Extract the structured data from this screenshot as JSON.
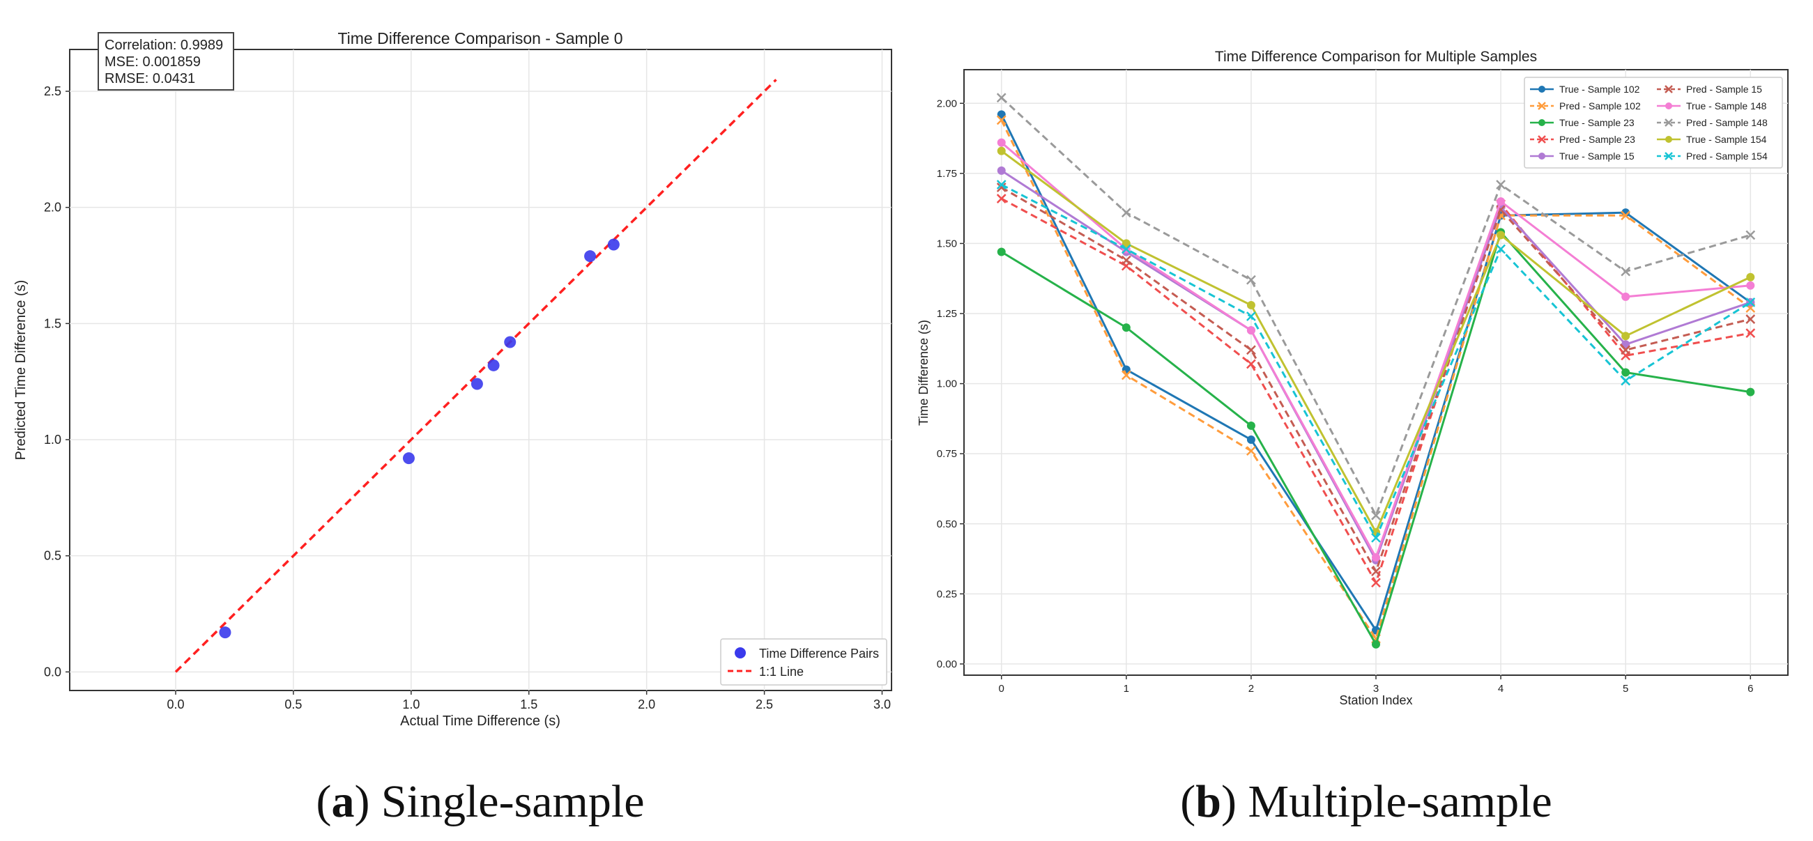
{
  "colors": {
    "scatter": "#3a3aec",
    "identity": "#ff2020",
    "blue": "#1f77b4",
    "orange": "#ff9c3c",
    "green": "#26b24a",
    "red": "#f04e4e",
    "purple": "#b07ad4",
    "brown": "#c45c52",
    "pink": "#f47ed4",
    "gray": "#9a9a9a",
    "olive": "#c0c230",
    "cyan": "#17c4d4"
  },
  "captions": {
    "a": {
      "label": "a",
      "text": "Single-sample"
    },
    "b": {
      "label": "b",
      "text": "Multiple-sample"
    }
  },
  "chart_data": [
    {
      "type": "scatter",
      "title": "Time Difference Comparison - Sample 0",
      "xlabel": "Actual Time Difference (s)",
      "ylabel": "Predicted Time Difference (s)",
      "xlim": [
        -0.45,
        3.04
      ],
      "ylim": [
        -0.08,
        2.68
      ],
      "xticks": [
        "0.0",
        "0.5",
        "1.0",
        "1.5",
        "2.0",
        "2.5",
        "3.0"
      ],
      "yticks": [
        "0.0",
        "0.5",
        "1.0",
        "1.5",
        "2.0",
        "2.5"
      ],
      "grid": true,
      "stats": [
        "Correlation: 0.9989",
        "MSE: 0.001859",
        "RMSE: 0.0431"
      ],
      "points": [
        {
          "x": 0.21,
          "y": 0.17
        },
        {
          "x": 0.99,
          "y": 0.92
        },
        {
          "x": 1.28,
          "y": 1.24
        },
        {
          "x": 1.35,
          "y": 1.32
        },
        {
          "x": 1.42,
          "y": 1.42
        },
        {
          "x": 1.76,
          "y": 1.79
        },
        {
          "x": 1.86,
          "y": 1.84
        }
      ],
      "identity_line": {
        "from": 0.0,
        "to": 2.55
      },
      "legend": [
        "Time Difference Pairs",
        "1:1 Line"
      ],
      "legend_position": "lower-right"
    },
    {
      "type": "line",
      "title": "Time Difference Comparison for Multiple Samples",
      "xlabel": "Station Index",
      "ylabel": "Time Difference (s)",
      "xlim": [
        -0.3,
        6.3
      ],
      "ylim": [
        -0.04,
        2.12
      ],
      "x": [
        0,
        1,
        2,
        3,
        4,
        5,
        6
      ],
      "xticks": [
        "0",
        "1",
        "2",
        "3",
        "4",
        "5",
        "6"
      ],
      "yticks": [
        "0.00",
        "0.25",
        "0.50",
        "0.75",
        "1.00",
        "1.25",
        "1.50",
        "1.75",
        "2.00"
      ],
      "grid": true,
      "legend_position": "top-right",
      "series": [
        {
          "name": "True - Sample 102",
          "color": "blue",
          "marker": "circle",
          "dashed": false,
          "values": [
            1.96,
            1.05,
            0.8,
            0.12,
            1.6,
            1.61,
            1.29
          ]
        },
        {
          "name": "Pred - Sample 102",
          "color": "orange",
          "marker": "x",
          "dashed": true,
          "values": [
            1.94,
            1.03,
            0.76,
            0.09,
            1.6,
            1.6,
            1.27
          ]
        },
        {
          "name": "True - Sample 23",
          "color": "green",
          "marker": "circle",
          "dashed": false,
          "values": [
            1.47,
            1.2,
            0.85,
            0.07,
            1.54,
            1.04,
            0.97
          ]
        },
        {
          "name": "Pred - Sample 23",
          "color": "red",
          "marker": "x",
          "dashed": true,
          "values": [
            1.66,
            1.42,
            1.07,
            0.29,
            1.64,
            1.1,
            1.18
          ]
        },
        {
          "name": "True - Sample 15",
          "color": "purple",
          "marker": "circle",
          "dashed": false,
          "values": [
            1.76,
            1.47,
            1.19,
            0.37,
            1.63,
            1.14,
            1.29
          ]
        },
        {
          "name": "Pred - Sample 15",
          "color": "brown",
          "marker": "x",
          "dashed": true,
          "values": [
            1.7,
            1.44,
            1.12,
            0.33,
            1.62,
            1.12,
            1.23
          ]
        },
        {
          "name": "True - Sample 148",
          "color": "pink",
          "marker": "circle",
          "dashed": false,
          "values": [
            1.86,
            1.48,
            1.19,
            0.38,
            1.65,
            1.31,
            1.35
          ]
        },
        {
          "name": "Pred - Sample 148",
          "color": "gray",
          "marker": "x",
          "dashed": true,
          "values": [
            2.02,
            1.61,
            1.37,
            0.53,
            1.71,
            1.4,
            1.53
          ]
        },
        {
          "name": "True - Sample 154",
          "color": "olive",
          "marker": "circle",
          "dashed": false,
          "values": [
            1.83,
            1.5,
            1.28,
            0.47,
            1.53,
            1.17,
            1.38
          ]
        },
        {
          "name": "Pred - Sample 154",
          "color": "cyan",
          "marker": "x",
          "dashed": true,
          "values": [
            1.71,
            1.48,
            1.24,
            0.45,
            1.48,
            1.01,
            1.29
          ]
        }
      ]
    }
  ]
}
